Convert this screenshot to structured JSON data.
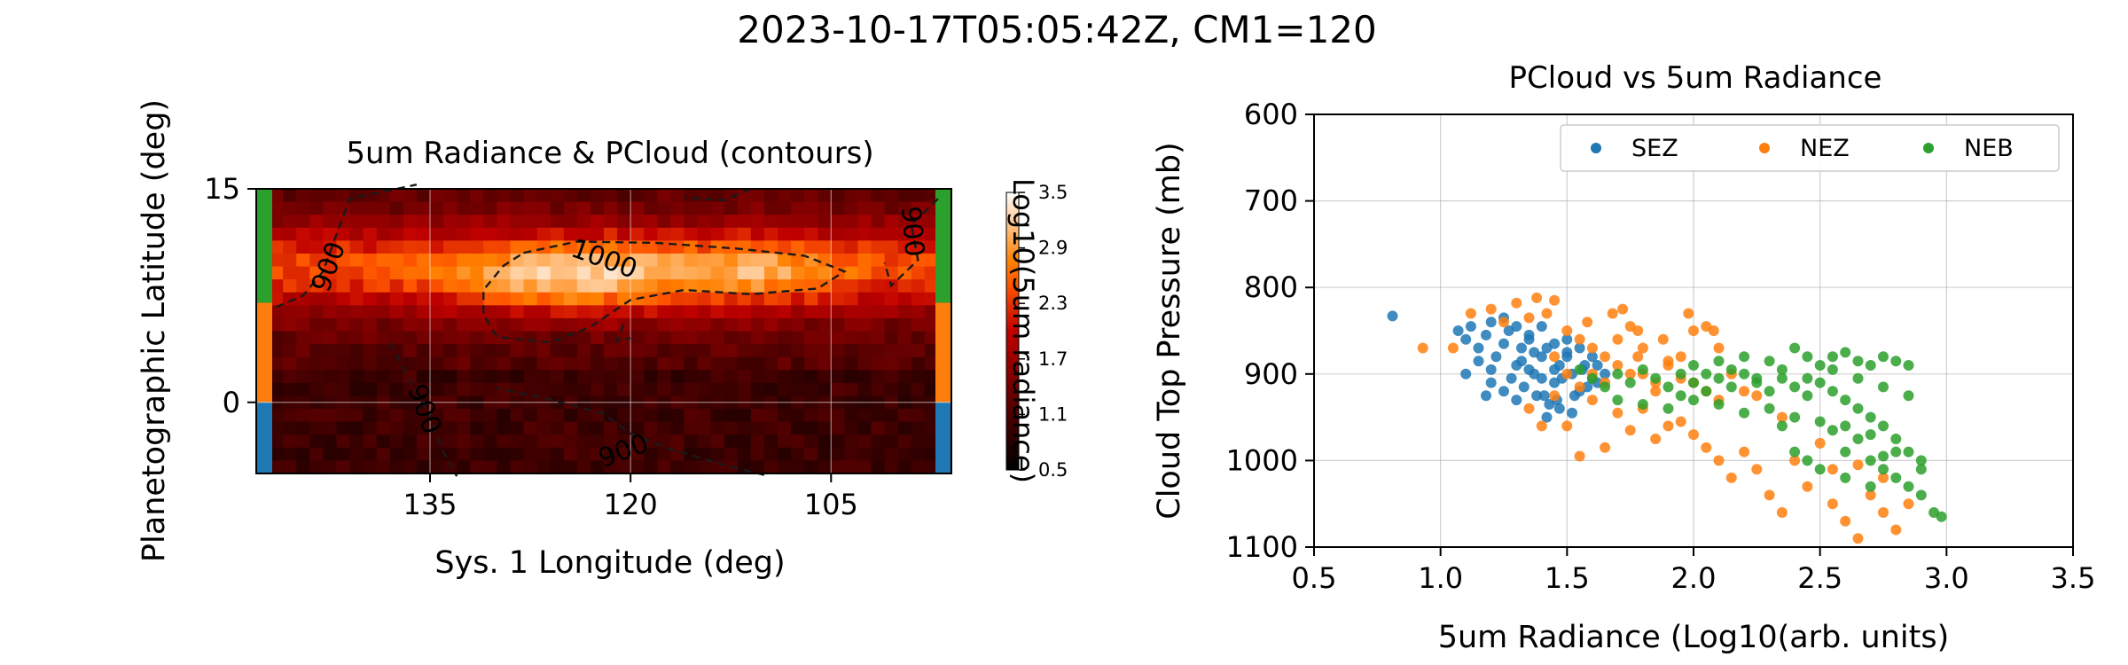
{
  "figure": {
    "title": "2023-10-17T05:05:42Z, CM1=120"
  },
  "chart_data": [
    {
      "type": "heatmap",
      "title": "5um Radiance & PCloud (contours)",
      "xlabel": "Sys. 1 Longitude (deg)",
      "ylabel": "Planetographic Latitude (deg)",
      "xlim": [
        148,
        96
      ],
      "ylim": [
        -5,
        15
      ],
      "xticks": [
        "135",
        "120",
        "105"
      ],
      "xtick_values": [
        135,
        120,
        105
      ],
      "yticks": [
        "15",
        "0"
      ],
      "ytick_values": [
        15,
        0
      ],
      "grid": true,
      "colorbar": {
        "label": "Log10(5um radiance)",
        "ticks": [
          "3.5",
          "2.9",
          "2.3",
          "1.7",
          "1.1",
          "0.5"
        ],
        "tick_values": [
          3.5,
          2.9,
          2.3,
          1.7,
          1.1,
          0.5
        ],
        "range": [
          0.5,
          3.5
        ],
        "colormap": "gist_heat"
      },
      "contour_labels": [
        "900",
        "1000",
        "900",
        "900",
        "900"
      ],
      "zone_bands": [
        {
          "name": "SEZ",
          "lat_range": [
            -5,
            0
          ],
          "color": "#1f77b4"
        },
        {
          "name": "NEZ",
          "lat_range": [
            0,
            7
          ],
          "color": "#ff7f0e"
        },
        {
          "name": "NEB",
          "lat_range": [
            7,
            15
          ],
          "color": "#2ca02c"
        }
      ]
    },
    {
      "type": "scatter",
      "title": "PCloud vs 5um Radiance",
      "xlabel": "5um Radiance (Log10(arb. units)",
      "ylabel": "Cloud Top Pressure (mb)",
      "xlim": [
        0.5,
        3.5
      ],
      "ylim": [
        1100,
        600
      ],
      "xticks": [
        "0.5",
        "1.0",
        "1.5",
        "2.0",
        "2.5",
        "3.0",
        "3.5"
      ],
      "xtick_values": [
        0.5,
        1.0,
        1.5,
        2.0,
        2.5,
        3.0,
        3.5
      ],
      "yticks": [
        "600",
        "700",
        "800",
        "900",
        "1000",
        "1100"
      ],
      "ytick_values": [
        600,
        700,
        800,
        900,
        1000,
        1100
      ],
      "grid": true,
      "legend": "top-right",
      "series": [
        {
          "name": "SEZ",
          "color": "#1f77b4",
          "points": [
            [
              0.81,
              833
            ],
            [
              1.07,
              850
            ],
            [
              1.1,
              860
            ],
            [
              1.12,
              845
            ],
            [
              1.15,
              870
            ],
            [
              1.18,
              855
            ],
            [
              1.2,
              840
            ],
            [
              1.22,
              880
            ],
            [
              1.25,
              865
            ],
            [
              1.27,
              850
            ],
            [
              1.3,
              890
            ],
            [
              1.32,
              870
            ],
            [
              1.35,
              860
            ],
            [
              1.37,
              900
            ],
            [
              1.4,
              880
            ],
            [
              1.42,
              870
            ],
            [
              1.45,
              910
            ],
            [
              1.47,
              890
            ],
            [
              1.5,
              880
            ],
            [
              1.52,
              900
            ],
            [
              1.55,
              920
            ],
            [
              1.57,
              890
            ],
            [
              1.6,
              880
            ],
            [
              1.62,
              910
            ],
            [
              1.65,
              900
            ],
            [
              1.15,
              885
            ],
            [
              1.2,
              895
            ],
            [
              1.28,
              905
            ],
            [
              1.33,
              915
            ],
            [
              1.38,
              925
            ],
            [
              1.43,
              935
            ],
            [
              1.48,
              905
            ],
            [
              1.53,
              925
            ],
            [
              1.58,
              915
            ],
            [
              1.25,
              835
            ],
            [
              1.3,
              845
            ],
            [
              1.35,
              855
            ],
            [
              1.4,
              845
            ],
            [
              1.45,
              865
            ],
            [
              1.5,
              875
            ],
            [
              1.2,
              910
            ],
            [
              1.25,
              920
            ],
            [
              1.3,
              930
            ],
            [
              1.35,
              895
            ],
            [
              1.4,
              905
            ],
            [
              1.45,
              895
            ],
            [
              1.5,
              860
            ],
            [
              1.55,
              870
            ],
            [
              1.6,
              905
            ],
            [
              1.42,
              950
            ],
            [
              1.47,
              940
            ],
            [
              1.52,
              945
            ],
            [
              1.1,
              900
            ],
            [
              1.18,
              925
            ],
            [
              1.32,
              885
            ],
            [
              1.37,
              875
            ],
            [
              1.41,
              925
            ],
            [
              1.46,
              930
            ],
            [
              1.56,
              895
            ],
            [
              1.62,
              890
            ]
          ]
        },
        {
          "name": "NEZ",
          "color": "#ff7f0e",
          "points": [
            [
              0.93,
              870
            ],
            [
              1.05,
              870
            ],
            [
              1.12,
              830
            ],
            [
              1.2,
              825
            ],
            [
              1.25,
              840
            ],
            [
              1.3,
              818
            ],
            [
              1.35,
              835
            ],
            [
              1.38,
              812
            ],
            [
              1.42,
              830
            ],
            [
              1.45,
              815
            ],
            [
              1.5,
              850
            ],
            [
              1.55,
              860
            ],
            [
              1.6,
              870
            ],
            [
              1.65,
              880
            ],
            [
              1.7,
              860
            ],
            [
              1.72,
              825
            ],
            [
              1.75,
              845
            ],
            [
              1.78,
              880
            ],
            [
              1.8,
              900
            ],
            [
              1.85,
              910
            ],
            [
              1.9,
              885
            ],
            [
              1.95,
              880
            ],
            [
              2.0,
              850
            ],
            [
              2.05,
              845
            ],
            [
              2.1,
              870
            ],
            [
              2.15,
              900
            ],
            [
              2.2,
              920
            ],
            [
              1.4,
              960
            ],
            [
              1.5,
              960
            ],
            [
              1.6,
              930
            ],
            [
              1.7,
              945
            ],
            [
              1.8,
              940
            ],
            [
              1.9,
              960
            ],
            [
              2.0,
              970
            ],
            [
              2.1,
              1000
            ],
            [
              2.15,
              1020
            ],
            [
              2.2,
              990
            ],
            [
              2.3,
              1040
            ],
            [
              2.35,
              1060
            ],
            [
              2.4,
              1000
            ],
            [
              2.5,
              980
            ],
            [
              2.55,
              1050
            ],
            [
              2.6,
              1070
            ],
            [
              2.65,
              1090
            ],
            [
              2.7,
              1040
            ],
            [
              2.75,
              1060
            ],
            [
              2.8,
              1080
            ],
            [
              2.85,
              1050
            ],
            [
              1.55,
              995
            ],
            [
              1.65,
              985
            ],
            [
              1.75,
              965
            ],
            [
              1.85,
              975
            ],
            [
              1.95,
              955
            ],
            [
              2.05,
              985
            ],
            [
              2.25,
              1010
            ],
            [
              2.45,
              1030
            ],
            [
              2.65,
              1005
            ],
            [
              1.6,
              900
            ],
            [
              1.7,
              890
            ],
            [
              1.8,
              870
            ],
            [
              1.9,
              890
            ],
            [
              2.0,
              910
            ],
            [
              2.1,
              930
            ],
            [
              1.45,
              880
            ],
            [
              1.5,
              900
            ],
            [
              1.55,
              915
            ],
            [
              1.65,
              910
            ],
            [
              1.75,
              900
            ],
            [
              1.85,
              920
            ],
            [
              1.95,
              905
            ],
            [
              2.05,
              920
            ],
            [
              1.35,
              940
            ],
            [
              1.45,
              925
            ],
            [
              2.25,
              925
            ],
            [
              2.35,
              950
            ],
            [
              2.55,
              1010
            ],
            [
              2.75,
              1020
            ],
            [
              1.58,
              840
            ],
            [
              1.68,
              830
            ],
            [
              1.78,
              850
            ],
            [
              1.88,
              860
            ],
            [
              1.98,
              830
            ],
            [
              2.08,
              850
            ]
          ]
        },
        {
          "name": "NEB",
          "color": "#2ca02c",
          "points": [
            [
              1.55,
              895
            ],
            [
              1.6,
              905
            ],
            [
              1.65,
              915
            ],
            [
              1.7,
              900
            ],
            [
              1.75,
              910
            ],
            [
              1.8,
              895
            ],
            [
              1.85,
              905
            ],
            [
              1.9,
              915
            ],
            [
              1.95,
              900
            ],
            [
              2.0,
              910
            ],
            [
              2.05,
              920
            ],
            [
              2.1,
              905
            ],
            [
              2.15,
              915
            ],
            [
              2.2,
              900
            ],
            [
              2.25,
              910
            ],
            [
              2.3,
              920
            ],
            [
              2.35,
              905
            ],
            [
              2.4,
              915
            ],
            [
              2.45,
              925
            ],
            [
              2.5,
              910
            ],
            [
              2.55,
              920
            ],
            [
              2.6,
              930
            ],
            [
              2.65,
              940
            ],
            [
              2.7,
              950
            ],
            [
              2.75,
              960
            ],
            [
              2.8,
              975
            ],
            [
              2.85,
              990
            ],
            [
              2.9,
              1010
            ],
            [
              2.95,
              1060
            ],
            [
              2.98,
              1065
            ],
            [
              2.2,
              880
            ],
            [
              2.3,
              885
            ],
            [
              2.4,
              870
            ],
            [
              2.45,
              880
            ],
            [
              2.5,
              890
            ],
            [
              2.55,
              880
            ],
            [
              2.6,
              875
            ],
            [
              2.65,
              885
            ],
            [
              2.7,
              890
            ],
            [
              2.75,
              880
            ],
            [
              2.8,
              885
            ],
            [
              2.85,
              890
            ],
            [
              2.6,
              960
            ],
            [
              2.7,
              970
            ],
            [
              2.8,
              990
            ],
            [
              2.9,
              1000
            ],
            [
              2.5,
              1010
            ],
            [
              2.6,
              1020
            ],
            [
              2.7,
              1030
            ],
            [
              1.7,
              930
            ],
            [
              1.8,
              935
            ],
            [
              1.9,
              940
            ],
            [
              2.0,
              930
            ],
            [
              2.1,
              935
            ],
            [
              2.2,
              945
            ],
            [
              2.3,
              940
            ],
            [
              2.4,
              950
            ],
            [
              2.5,
              955
            ],
            [
              2.6,
              990
            ],
            [
              2.7,
              1000
            ],
            [
              2.75,
              1010
            ],
            [
              2.8,
              1020
            ],
            [
              2.85,
              1030
            ],
            [
              2.9,
              1040
            ],
            [
              2.4,
              990
            ],
            [
              2.45,
              1000
            ],
            [
              2.35,
              960
            ],
            [
              2.55,
              965
            ],
            [
              2.65,
              975
            ],
            [
              2.75,
              995
            ],
            [
              2.05,
              900
            ],
            [
              2.15,
              895
            ],
            [
              2.25,
              905
            ],
            [
              2.35,
              895
            ],
            [
              2.45,
              905
            ],
            [
              2.55,
              895
            ],
            [
              2.65,
              905
            ],
            [
              2.75,
              915
            ],
            [
              2.85,
              925
            ],
            [
              1.95,
              925
            ],
            [
              2.0,
              890
            ],
            [
              2.1,
              885
            ]
          ]
        }
      ]
    }
  ]
}
